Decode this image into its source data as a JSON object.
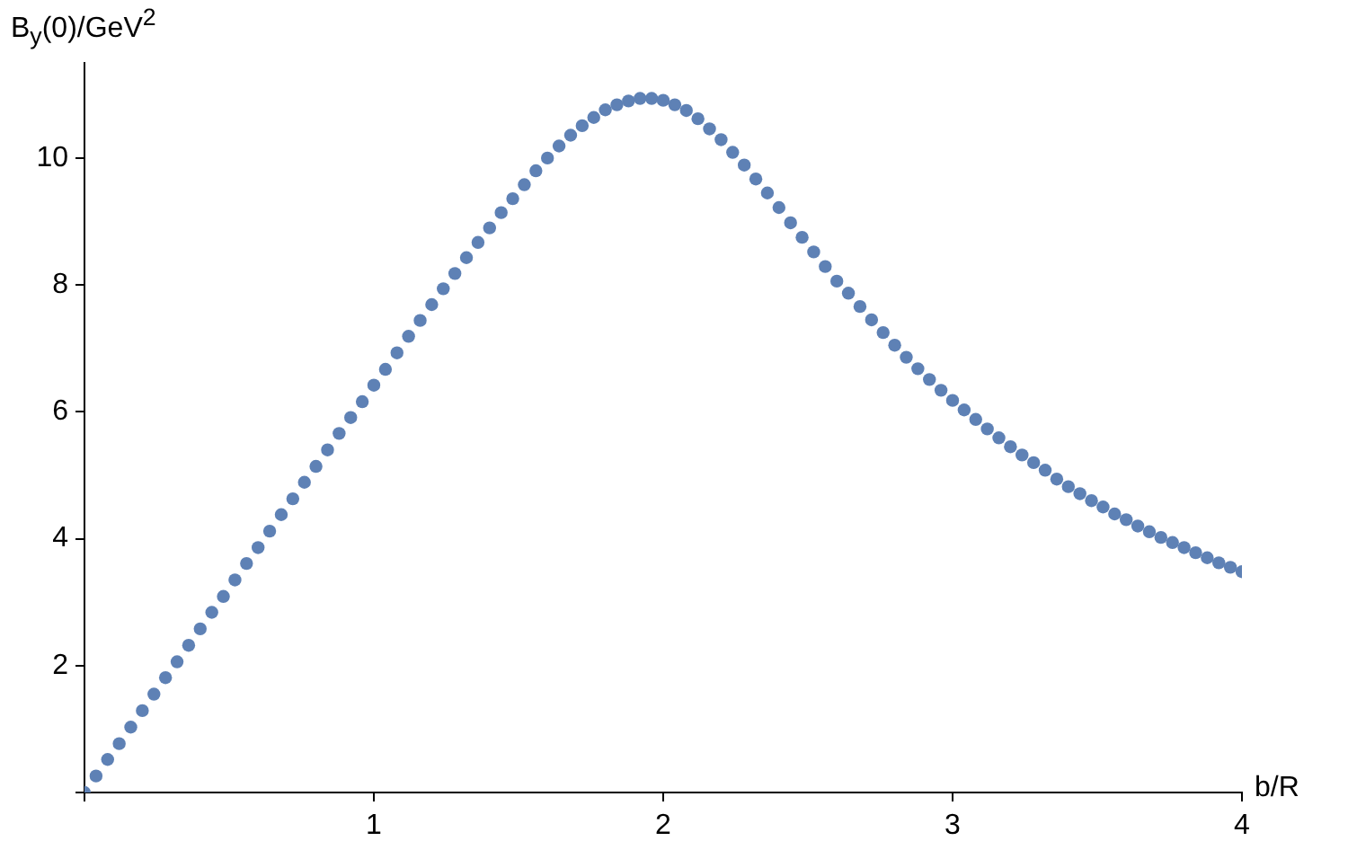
{
  "chart_data": {
    "type": "scatter",
    "xlabel": "b/R",
    "ylabel": "B$_{y}$(0)/GeV$^{2}$",
    "xlim": [
      0,
      4
    ],
    "ylim": [
      0,
      11.5
    ],
    "xticks": [
      {
        "value": 0,
        "label": null
      },
      1,
      2,
      3,
      4
    ],
    "yticks": [
      {
        "value": 0,
        "label": null
      },
      2,
      4,
      6,
      8,
      10
    ],
    "grid": false,
    "legend": false,
    "marker": "circle",
    "series": [
      {
        "color": "#5e81b5",
        "x": [
          0,
          0.04,
          0.08,
          0.12,
          0.16,
          0.2,
          0.24,
          0.28,
          0.32,
          0.36,
          0.4,
          0.44,
          0.48,
          0.52,
          0.56,
          0.6,
          0.64,
          0.68,
          0.72,
          0.76,
          0.8,
          0.84,
          0.88,
          0.92,
          0.96,
          1,
          1.04,
          1.08,
          1.12,
          1.16,
          1.2,
          1.24,
          1.28,
          1.32,
          1.36,
          1.4,
          1.44,
          1.48,
          1.52,
          1.56,
          1.6,
          1.64,
          1.68,
          1.72,
          1.76,
          1.8,
          1.84,
          1.88,
          1.92,
          1.96,
          2,
          2.04,
          2.08,
          2.12,
          2.16,
          2.2,
          2.24,
          2.28,
          2.32,
          2.36,
          2.4,
          2.44,
          2.48,
          2.52,
          2.56,
          2.6,
          2.64,
          2.68,
          2.72,
          2.76,
          2.8,
          2.84,
          2.88,
          2.92,
          2.96,
          3,
          3.04,
          3.08,
          3.12,
          3.16,
          3.2,
          3.24,
          3.28,
          3.32,
          3.36,
          3.4,
          3.44,
          3.48,
          3.52,
          3.56,
          3.6,
          3.64,
          3.68,
          3.72,
          3.76,
          3.8,
          3.84,
          3.88,
          3.92,
          3.96,
          4
        ],
        "values": [
          0,
          0.26,
          0.52,
          0.77,
          1.03,
          1.29,
          1.55,
          1.81,
          2.06,
          2.32,
          2.58,
          2.84,
          3.09,
          3.35,
          3.61,
          3.86,
          4.12,
          4.38,
          4.63,
          4.89,
          5.14,
          5.4,
          5.66,
          5.91,
          6.16,
          6.42,
          6.67,
          6.93,
          7.19,
          7.44,
          7.69,
          7.94,
          8.18,
          8.43,
          8.67,
          8.9,
          9.14,
          9.36,
          9.58,
          9.8,
          10,
          10.19,
          10.36,
          10.51,
          10.64,
          10.76,
          10.84,
          10.9,
          10.94,
          10.94,
          10.91,
          10.84,
          10.75,
          10.62,
          10.46,
          10.29,
          10.09,
          9.89,
          9.67,
          9.45,
          9.22,
          8.98,
          8.75,
          8.52,
          8.29,
          8.06,
          7.87,
          7.66,
          7.45,
          7.25,
          7.05,
          6.86,
          6.68,
          6.51,
          6.34,
          6.18,
          6.03,
          5.88,
          5.73,
          5.59,
          5.45,
          5.32,
          5.2,
          5.08,
          4.94,
          4.82,
          4.71,
          4.6,
          4.5,
          4.39,
          4.3,
          4.2,
          4.11,
          4.02,
          3.94,
          3.86,
          3.78,
          3.7,
          3.62,
          3.55,
          3.48
        ]
      }
    ]
  }
}
